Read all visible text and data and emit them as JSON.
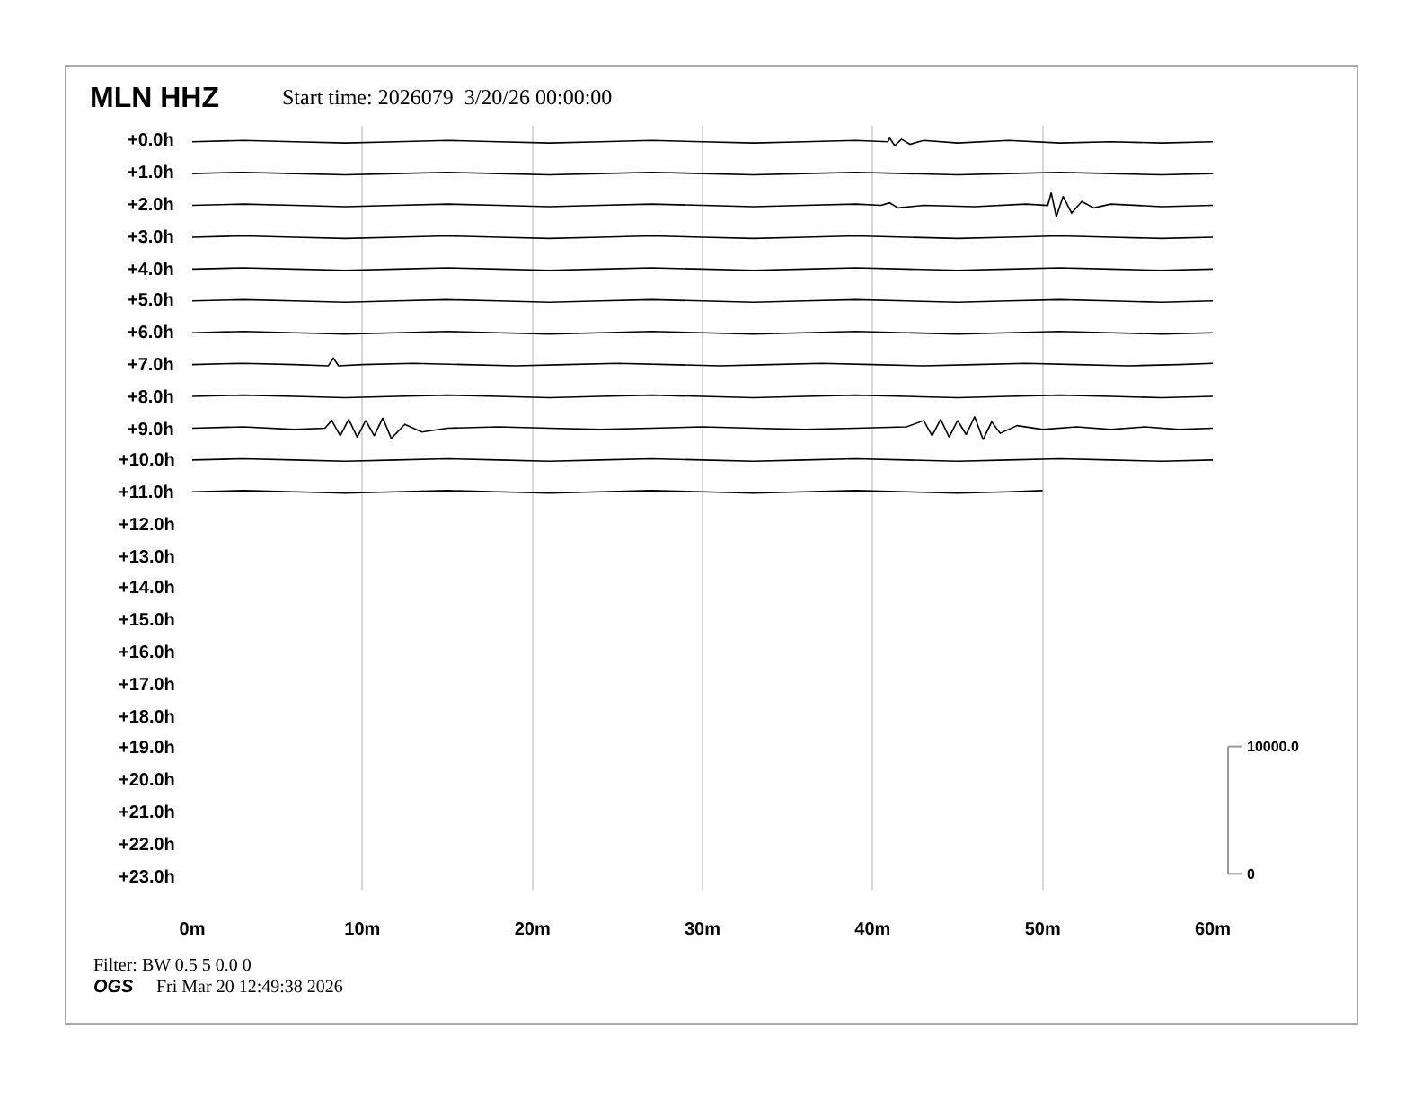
{
  "chart_data": {
    "type": "line",
    "title": "MLN HHZ",
    "subtitle": "Start time: 2026079  3/20/26 00:00:00",
    "annotations": [
      "Filter: BW 0.5 5 0.0 0",
      "OGS",
      "Fri Mar 20 12:49:38 2026",
      "+0.0h",
      "+1.0h",
      "+2.0h",
      "+3.0h",
      "+4.0h",
      "+5.0h",
      "+6.0h",
      "+7.0h",
      "+8.0h",
      "+9.0h",
      "+10.0h",
      "+11.0h",
      "+12.0h",
      "+13.0h",
      "+14.0h",
      "+15.0h",
      "+16.0h",
      "+17.0h",
      "+18.0h",
      "+19.0h",
      "+20.0h",
      "+21.0h",
      "+22.0h",
      "+23.0h"
    ],
    "xlim": [
      0,
      60
    ],
    "xticks": [
      {
        "value": 0,
        "label": "0m"
      },
      {
        "value": 10,
        "label": "10m"
      },
      {
        "value": 20,
        "label": "20m"
      },
      {
        "value": 30,
        "label": "30m"
      },
      {
        "value": 40,
        "label": "40m"
      },
      {
        "value": 50,
        "label": "50m"
      },
      {
        "value": 60,
        "label": "60m"
      }
    ],
    "ylim": [
      -1250,
      58750
    ],
    "yticks": [
      0,
      {
        "value": 10000,
        "label": "10000.0"
      }
    ],
    "grid": "x",
    "series": [
      {
        "color": "#000000",
        "x": [
          0,
          3,
          6,
          9,
          12,
          15,
          18,
          21,
          24,
          27,
          30,
          33,
          36,
          39,
          40.9,
          41,
          41.3,
          41.7,
          42.2,
          43,
          45,
          48,
          51,
          54,
          57,
          60
        ],
        "values": [
          57500,
          57600,
          57500,
          57400,
          57500,
          57600,
          57500,
          57400,
          57500,
          57600,
          57500,
          57400,
          57500,
          57600,
          57500,
          57800,
          57200,
          57700,
          57300,
          57600,
          57400,
          57600,
          57400,
          57500,
          57400,
          57500
        ]
      },
      {
        "color": "#000000",
        "x": [
          0,
          3,
          6,
          9,
          12,
          15,
          18,
          21,
          24,
          27,
          30,
          33,
          36,
          39,
          42,
          45,
          48,
          51,
          54,
          57,
          60
        ],
        "values": [
          55000,
          55100,
          55000,
          54900,
          55000,
          55100,
          55000,
          54900,
          55000,
          55100,
          55000,
          54900,
          55000,
          55100,
          55000,
          54900,
          55000,
          55100,
          55000,
          54900,
          55000
        ]
      },
      {
        "color": "#000000",
        "x": [
          0,
          3,
          6,
          9,
          12,
          15,
          18,
          21,
          24,
          27,
          30,
          33,
          36,
          39,
          40.5,
          41,
          41.5,
          43,
          46,
          49,
          50.3,
          50.5,
          50.8,
          51.2,
          51.7,
          52.3,
          53,
          54,
          57,
          60
        ],
        "values": [
          52500,
          52600,
          52500,
          52400,
          52500,
          52600,
          52500,
          52400,
          52500,
          52600,
          52500,
          52400,
          52500,
          52600,
          52500,
          52700,
          52300,
          52500,
          52400,
          52600,
          52500,
          53500,
          51600,
          53200,
          51900,
          52800,
          52300,
          52600,
          52400,
          52500
        ]
      },
      {
        "color": "#000000",
        "x": [
          0,
          3,
          6,
          9,
          12,
          15,
          18,
          21,
          24,
          27,
          30,
          33,
          36,
          39,
          42,
          45,
          48,
          51,
          54,
          57,
          60
        ],
        "values": [
          50000,
          50100,
          50000,
          49900,
          50000,
          50100,
          50000,
          49900,
          50000,
          50100,
          50000,
          49900,
          50000,
          50100,
          50000,
          49900,
          50000,
          50100,
          50000,
          49900,
          50000
        ]
      },
      {
        "color": "#000000",
        "x": [
          0,
          3,
          6,
          9,
          12,
          15,
          18,
          21,
          24,
          27,
          30,
          33,
          36,
          39,
          42,
          45,
          48,
          51,
          54,
          57,
          60
        ],
        "values": [
          47500,
          47600,
          47500,
          47400,
          47500,
          47600,
          47500,
          47400,
          47500,
          47600,
          47500,
          47400,
          47500,
          47600,
          47500,
          47400,
          47500,
          47600,
          47500,
          47400,
          47500
        ]
      },
      {
        "color": "#000000",
        "x": [
          0,
          3,
          6,
          9,
          12,
          15,
          18,
          21,
          24,
          27,
          30,
          33,
          36,
          39,
          42,
          45,
          48,
          51,
          54,
          57,
          60
        ],
        "values": [
          45000,
          45100,
          45000,
          44900,
          45000,
          45100,
          45000,
          44900,
          45000,
          45100,
          45000,
          44900,
          45000,
          45100,
          45000,
          44900,
          45000,
          45100,
          45000,
          44900,
          45000
        ]
      },
      {
        "color": "#000000",
        "x": [
          0,
          3,
          6,
          9,
          12,
          15,
          18,
          21,
          24,
          27,
          30,
          33,
          36,
          39,
          42,
          45,
          48,
          51,
          54,
          57,
          60
        ],
        "values": [
          42500,
          42600,
          42500,
          42400,
          42500,
          42600,
          42500,
          42400,
          42500,
          42600,
          42500,
          42400,
          42500,
          42600,
          42500,
          42400,
          42500,
          42600,
          42500,
          42400,
          42500
        ]
      },
      {
        "color": "#000000",
        "x": [
          0,
          3,
          6,
          8,
          8.3,
          8.6,
          10,
          13,
          16,
          19,
          22,
          25,
          28,
          31,
          34,
          37,
          40,
          43,
          46,
          49,
          52,
          55,
          58,
          60
        ],
        "values": [
          40000,
          40100,
          40000,
          39900,
          40500,
          39900,
          40000,
          40100,
          40000,
          39900,
          40000,
          40100,
          40000,
          39900,
          40000,
          40100,
          40000,
          39900,
          40000,
          40100,
          40000,
          39900,
          40000,
          40100
        ]
      },
      {
        "color": "#000000",
        "x": [
          0,
          3,
          6,
          9,
          12,
          15,
          18,
          21,
          24,
          27,
          30,
          33,
          36,
          39,
          42,
          45,
          48,
          51,
          54,
          57,
          60
        ],
        "values": [
          37500,
          37600,
          37500,
          37400,
          37500,
          37600,
          37500,
          37400,
          37500,
          37600,
          37500,
          37400,
          37500,
          37600,
          37500,
          37400,
          37500,
          37600,
          37500,
          37400,
          37500
        ]
      },
      {
        "color": "#000000",
        "x": [
          0,
          3,
          6,
          7.8,
          8.2,
          8.7,
          9.2,
          9.7,
          10.2,
          10.7,
          11.2,
          11.7,
          12.5,
          13.5,
          15,
          18,
          21,
          24,
          27,
          30,
          33,
          36,
          39,
          42,
          43,
          43.5,
          44,
          44.5,
          45,
          45.5,
          46,
          46.5,
          47,
          47.5,
          48.5,
          50,
          52,
          54,
          56,
          58,
          60
        ],
        "values": [
          35000,
          35100,
          34900,
          35000,
          35600,
          34400,
          35700,
          34300,
          35600,
          34400,
          35800,
          34200,
          35300,
          34700,
          35000,
          35100,
          35000,
          34900,
          35000,
          35100,
          35000,
          34900,
          35000,
          35100,
          35600,
          34400,
          35700,
          34300,
          35600,
          34500,
          35900,
          34100,
          35500,
          34600,
          35200,
          34900,
          35100,
          34900,
          35100,
          34900,
          35000
        ]
      },
      {
        "color": "#000000",
        "x": [
          0,
          3,
          6,
          9,
          12,
          15,
          18,
          21,
          24,
          27,
          30,
          33,
          36,
          39,
          42,
          45,
          48,
          51,
          54,
          57,
          60
        ],
        "values": [
          32500,
          32600,
          32500,
          32400,
          32500,
          32600,
          32500,
          32400,
          32500,
          32600,
          32500,
          32400,
          32500,
          32600,
          32500,
          32400,
          32500,
          32600,
          32500,
          32400,
          32500
        ]
      },
      {
        "color": "#000000",
        "x": [
          0,
          3,
          6,
          9,
          12,
          15,
          18,
          21,
          24,
          27,
          30,
          33,
          36,
          39,
          42,
          45,
          48,
          50
        ],
        "values": [
          30000,
          30100,
          30000,
          29900,
          30000,
          30100,
          30000,
          29900,
          30000,
          30100,
          30000,
          29900,
          30000,
          30100,
          30000,
          29900,
          30000,
          30100
        ]
      }
    ]
  }
}
